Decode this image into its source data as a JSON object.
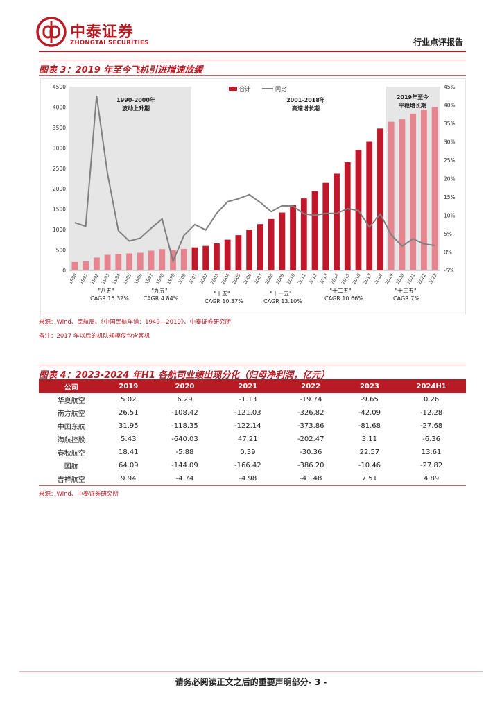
{
  "header": {
    "logo_cn": "中泰证券",
    "logo_en": "ZHONGTAI SECURITIES",
    "report_type": "行业点评报告"
  },
  "figure3": {
    "title": "图表 3：2019 年至今飞机引进增速放缓",
    "source": "来源：Wind、民航局、《中国民航年谱：1949—2010》、中泰证券研究所",
    "note": "备注：2017 年以后的机队规模仅包含客机"
  },
  "chart_data": {
    "type": "bar",
    "title": "",
    "legend": [
      "合计",
      "同比"
    ],
    "legend_position": "top-center",
    "categories": [
      "1990",
      "1991",
      "1992",
      "1993",
      "1994",
      "1995",
      "1996",
      "1997",
      "1998",
      "1999",
      "2000",
      "2001",
      "2002",
      "2003",
      "2004",
      "2005",
      "2006",
      "2007",
      "2008",
      "2009",
      "2010",
      "2011",
      "2012",
      "2013",
      "2014",
      "2015",
      "2016",
      "2017",
      "2018",
      "2019",
      "2020",
      "2021",
      "2022",
      "2023"
    ],
    "series": [
      {
        "name": "合计",
        "axis": "left",
        "kind": "bar",
        "values": [
          206,
          221,
          315,
          382,
          404,
          416,
          432,
          485,
          522,
          498,
          527,
          566,
          600,
          663,
          754,
          863,
          998,
          1134,
          1259,
          1417,
          1597,
          1764,
          1941,
          2145,
          2370,
          2650,
          2950,
          3150,
          3475,
          3640,
          3700,
          3840,
          3930,
          4000
        ]
      },
      {
        "name": "同比",
        "axis": "right",
        "kind": "line",
        "values": [
          8.0,
          7.0,
          42.5,
          21.3,
          5.8,
          3.0,
          3.8,
          6.5,
          9.0,
          -2.5,
          4.5,
          7.5,
          6.0,
          10.5,
          13.7,
          14.5,
          15.6,
          13.5,
          11.0,
          12.6,
          12.5,
          10.4,
          10.0,
          10.5,
          10.5,
          11.8,
          11.3,
          6.8,
          10.3,
          4.7,
          1.6,
          3.6,
          2.2,
          1.8
        ]
      }
    ],
    "bar_colors": {
      "dark": "#c0172b",
      "light": "#e6858f"
    },
    "line_color": "#7f7f7f",
    "y_left": {
      "min": 0,
      "max": 4500,
      "ticks": [
        "0",
        "500",
        "1000",
        "1500",
        "2000",
        "2500",
        "3000",
        "3500",
        "4000",
        "4500"
      ]
    },
    "y_right": {
      "min": -5,
      "max": 45,
      "ticks": [
        "-5%",
        "0%",
        "5%",
        "10%",
        "15%",
        "20%",
        "25%",
        "30%",
        "35%",
        "40%",
        "45%"
      ]
    },
    "periods": [
      {
        "label": "1990-2000年",
        "sub": "波动上升期"
      },
      {
        "label": "2001-2018年",
        "sub": "高速增长期"
      },
      {
        "label": "2019年至今",
        "sub": "平稳增长期"
      }
    ],
    "plan_labels": [
      {
        "name": "\"八五\"",
        "cagr": "CAGR 15.32%"
      },
      {
        "name": "\"九五\"",
        "cagr": "CAGR 4.84%"
      },
      {
        "name": "\"十五\"",
        "cagr": "CAGR 10.37%"
      },
      {
        "name": "\"十一五\"",
        "cagr": "CAGR 13.10%"
      },
      {
        "name": "\"十二五\"",
        "cagr": "CAGR 10.66%"
      },
      {
        "name": "\"十三五\"",
        "cagr": "CAGR 7%"
      }
    ]
  },
  "figure4": {
    "title": "图表 4：2023-2024 年H1 各航司业绩出现分化（归母净利润，亿元）",
    "headers": [
      "公司",
      "2019",
      "2020",
      "2021",
      "2022",
      "2023",
      "2024H1"
    ],
    "rows": [
      [
        "华夏航空",
        "5.02",
        "6.29",
        "-1.13",
        "-19.74",
        "-9.65",
        "0.26"
      ],
      [
        "南方航空",
        "26.51",
        "-108.42",
        "-121.03",
        "-326.82",
        "-42.09",
        "-12.28"
      ],
      [
        "中国东航",
        "31.95",
        "-118.35",
        "-122.14",
        "-373.86",
        "-81.68",
        "-27.68"
      ],
      [
        "海航控股",
        "5.43",
        "-640.03",
        "47.21",
        "-202.47",
        "3.11",
        "-6.36"
      ],
      [
        "春秋航空",
        "18.41",
        "-5.88",
        "0.39",
        "-30.36",
        "22.57",
        "13.61"
      ],
      [
        "国航",
        "64.09",
        "-144.09",
        "-166.42",
        "-386.20",
        "-10.46",
        "-27.82"
      ],
      [
        "吉祥航空",
        "9.94",
        "-4.74",
        "-4.98",
        "-41.48",
        "7.51",
        "4.89"
      ]
    ],
    "source": "来源：Wind、中泰证券研究所"
  },
  "footer": {
    "text": "请务必阅读正文之后的重要声明部分",
    "page": "- 3 -"
  }
}
